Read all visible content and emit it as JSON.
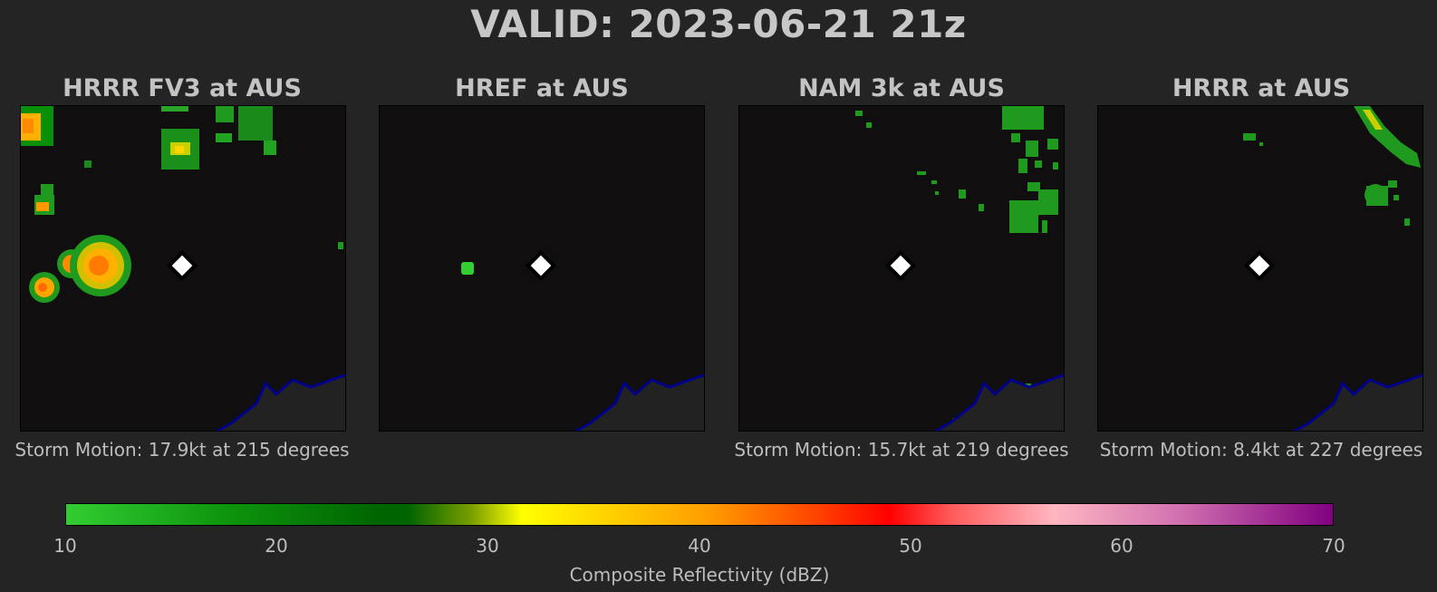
{
  "title": "VALID: 2023-06-21 21z",
  "panels": [
    {
      "title": "HRRR FV3 at AUS",
      "caption": "Storm Motion: 17.9kt at 215 degrees"
    },
    {
      "title": "HREF at AUS",
      "caption": ""
    },
    {
      "title": "NAM 3k at AUS",
      "caption": "Storm Motion: 15.7kt at 219 degrees"
    },
    {
      "title": "HRRR at AUS",
      "caption": "Storm Motion: 8.4kt at 227 degrees"
    }
  ],
  "colorbar": {
    "label": "Composite Reflectivity (dBZ)",
    "ticks": [
      "10",
      "20",
      "30",
      "40",
      "50",
      "60",
      "70"
    ],
    "range": [
      10,
      70
    ],
    "colors": [
      "#32cd32",
      "#006400",
      "#ffff00",
      "#ff9a00",
      "#ff0000",
      "#ffb6c1",
      "#800080"
    ]
  },
  "colors": {
    "background": "#242424",
    "map_background": "#100e0e",
    "coastline": "#00008b",
    "station_marker": "#ffffff"
  },
  "icons": {
    "station": "diamond-marker",
    "coast": "coastline"
  }
}
